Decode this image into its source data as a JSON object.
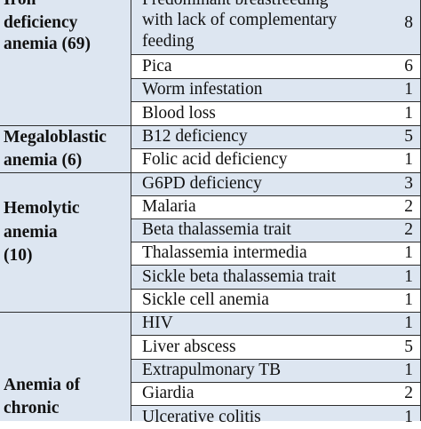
{
  "categories": [
    {
      "name_lines": [
        "Iron",
        "deficiency",
        "anemia (69)"
      ]
    },
    {
      "name_lines": [
        "Megaloblastic",
        "anemia (6)"
      ]
    },
    {
      "name_lines": [
        "Hemolytic",
        "anemia",
        "(10)"
      ]
    },
    {
      "name_lines": [
        "Anemia of",
        "chronic"
      ]
    }
  ],
  "rows": [
    {
      "cause_lines": [
        "Predominant breastfeeding",
        "with lack of complementary",
        "feeding"
      ],
      "count": "8"
    },
    {
      "cause": "Pica",
      "count": "6"
    },
    {
      "cause": "Worm infestation",
      "count": "1"
    },
    {
      "cause": "Blood loss",
      "count": "1"
    },
    {
      "cause": "B12 deficiency",
      "count": "5"
    },
    {
      "cause": "Folic acid deficiency",
      "count": "1"
    },
    {
      "cause": "G6PD deficiency",
      "count": "3"
    },
    {
      "cause": "Malaria",
      "count": "2"
    },
    {
      "cause": "Beta thalassemia trait",
      "count": "2"
    },
    {
      "cause": "Thalassemia intermedia",
      "count": "1"
    },
    {
      "cause": "Sickle beta thalassemia trait",
      "count": "1"
    },
    {
      "cause": "Sickle cell anemia",
      "count": "1"
    },
    {
      "cause": "HIV",
      "count": "1"
    },
    {
      "cause": "Liver abscess",
      "count": "5"
    },
    {
      "cause": "Extrapulmonary TB",
      "count": "1"
    },
    {
      "cause": "Giardia",
      "count": "2"
    },
    {
      "cause": "Ulcerative colitis",
      "count": "1"
    }
  ],
  "colors": {
    "shaded_row": "#dde6f1",
    "plain_row": "#ffffff",
    "rule": "#2d2d2d",
    "text": "#111111"
  }
}
